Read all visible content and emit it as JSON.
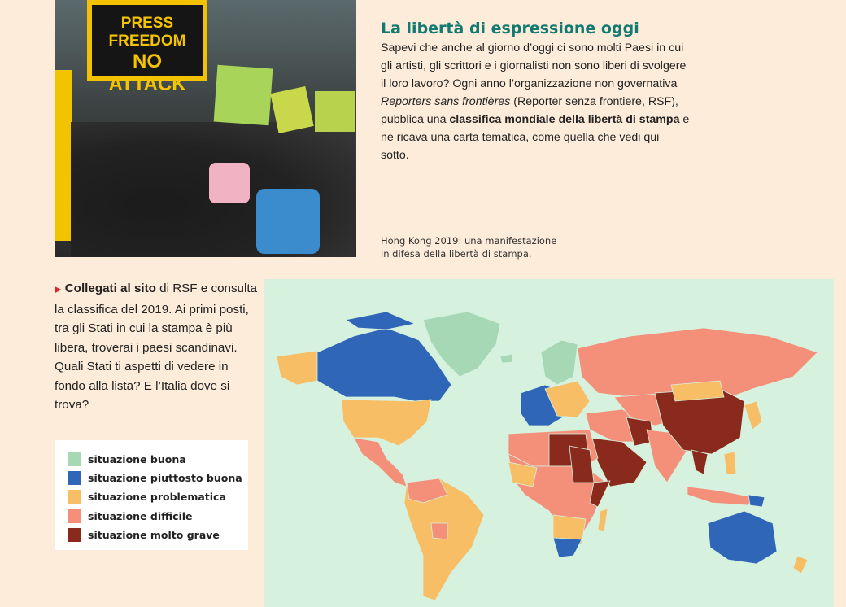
{
  "photo": {
    "sign_text_line1": "PRESS FREEDOM",
    "sign_text_line2": "NO ATTACK",
    "caption_line1": "Hong Kong 2019: una manifestazione",
    "caption_line2": "in difesa della libertà di stampa."
  },
  "article": {
    "title": "La libertà di espressione oggi",
    "p1": "Sapevi che anche al giorno d’oggi ci sono molti Paesi in cui gli artisti, gli scrittori e i giornalisti non sono liberi di svolgere il loro lavoro? Ogni anno l’organizzazione non governativa ",
    "p1_italic": "Reporters sans frontières",
    "p2": " (Reporter senza frontiere, RSF), pubblica una ",
    "p2_bold": "classifica mondiale della libertà di stampa",
    "p3": " e ne ricava una carta tematica, come quella che vedi qui sotto."
  },
  "activity": {
    "bullet_icon": "triangle-right",
    "bold": "Collegati al sito",
    "text": " di RSF e consulta la classifica del 2019. Ai primi posti, tra gli Stati in cui la stampa è più libera, troverai i paesi scandinavi. Quali Stati ti aspetti di vedere in fondo alla lista? E l’Italia dove si trova?"
  },
  "legend": {
    "items": [
      {
        "label": "situazione buona",
        "color": "#a6d8b5"
      },
      {
        "label": "situazione piuttosto buona",
        "color": "#2f66b8"
      },
      {
        "label": "situazione problematica",
        "color": "#f7be65"
      },
      {
        "label": "situazione difficile",
        "color": "#f4907a"
      },
      {
        "label": "situazione molto grave",
        "color": "#8a2a1c"
      }
    ]
  },
  "map": {
    "ocean_color": "#d6f1de"
  }
}
